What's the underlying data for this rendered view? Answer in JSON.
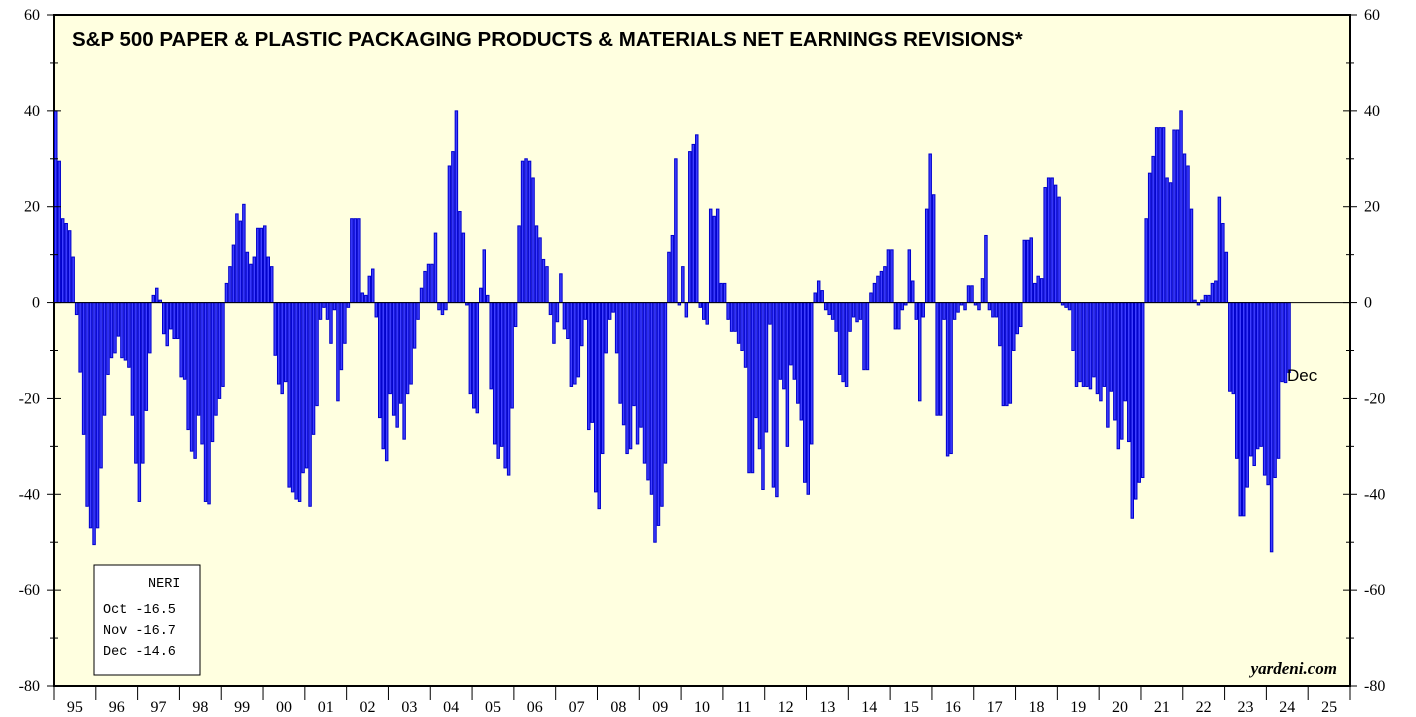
{
  "chart_data": {
    "type": "bar",
    "title": "S&P 500 PAPER & PLASTIC PACKAGING PRODUCTS & MATERIALS NET EARNINGS REVISIONS*",
    "ylim": [
      -80,
      60
    ],
    "y_ticks": [
      60,
      40,
      20,
      0,
      -20,
      -40,
      -60,
      -80
    ],
    "x_tick_labels": [
      "95",
      "96",
      "97",
      "98",
      "99",
      "00",
      "01",
      "02",
      "03",
      "04",
      "05",
      "06",
      "07",
      "08",
      "09",
      "10",
      "11",
      "12",
      "13",
      "14",
      "15",
      "16",
      "17",
      "18",
      "19",
      "20",
      "21",
      "22",
      "23",
      "24",
      "25"
    ],
    "x_start": "1995-01",
    "x_end": "2025-12",
    "end_label": "Dec",
    "credit": "yardeni.com",
    "legend": {
      "title": "NERI",
      "entries": [
        {
          "label": "Oct",
          "value": "-16.5"
        },
        {
          "label": "Nov",
          "value": "-16.7"
        },
        {
          "label": "Dec",
          "value": "-14.6"
        }
      ]
    },
    "series": [
      {
        "values": [
          40,
          29.5,
          17.5,
          16.5,
          15,
          9.5,
          -2.5,
          -14.5,
          -27.5,
          -42.5,
          -47,
          -50.5,
          -47,
          -34.5,
          -23.5,
          -15,
          -11.5,
          -10.5,
          -7,
          -11.5,
          -12,
          -13.5,
          -23.5,
          -33.5,
          -41.5,
          -33.5,
          -22.5,
          -10.5,
          1.5,
          3,
          0.5,
          -6.5,
          -9,
          -5.5,
          -7.5,
          -7.5,
          -15.5,
          -16,
          -26.5,
          -31,
          -32.5,
          -23.5,
          -29.5,
          -41.5,
          -42,
          -29,
          -23.5,
          -20,
          -17.5,
          4,
          7.5,
          12,
          18.5,
          17,
          20.5,
          10.5,
          8,
          9.5,
          15.5,
          15.5,
          16,
          9.5,
          7.5,
          -11,
          -17,
          -19,
          -16.5,
          -38.5,
          -39.5,
          -41,
          -41.5,
          -35.5,
          -34.5,
          -42.5,
          -27.5,
          -21.5,
          -3.5,
          -1,
          -3.5,
          -8.5,
          -1.5,
          -20.5,
          -14,
          -8.5,
          -1,
          17.5,
          17.5,
          17.5,
          2,
          1.5,
          5.5,
          7,
          -3,
          -24,
          -30.5,
          -33,
          -19,
          -23.5,
          -26,
          -21,
          -28.5,
          -19,
          -17,
          -9.5,
          -3.5,
          3,
          6.5,
          8,
          8,
          14.5,
          -1.5,
          -2.5,
          -1.5,
          28.5,
          31.5,
          40,
          19,
          14.5,
          -0.5,
          -19,
          -22,
          -23,
          3,
          11,
          1.5,
          -18,
          -29.5,
          -32.5,
          -30,
          -34.5,
          -36,
          -22,
          -5,
          16,
          29.5,
          30,
          29.5,
          26,
          16,
          13.5,
          9,
          7.5,
          -2.5,
          -8.5,
          -4,
          6,
          -5.5,
          -7.5,
          -17.5,
          -17,
          -15.5,
          -9,
          -3.5,
          -26.5,
          -25,
          -39.5,
          -43,
          -31.5,
          -10.5,
          -3.5,
          -2,
          -10.5,
          -21,
          -25.5,
          -31.5,
          -30.5,
          -21.5,
          -29.5,
          -26,
          -33.5,
          -37,
          -40,
          -50,
          -46.5,
          -42.5,
          -33.5,
          10.5,
          14,
          30,
          -0.5,
          7.5,
          -3,
          31.5,
          33,
          35,
          -1,
          -3.5,
          -4.5,
          19.5,
          18,
          19.5,
          4,
          4,
          -3.5,
          -6,
          -6,
          -8.5,
          -10,
          -13.5,
          -35.5,
          -35.5,
          -24,
          -30.5,
          -39,
          -27,
          -4.5,
          -38.5,
          -40.5,
          -16,
          -18,
          -30,
          -13,
          -16,
          -21,
          -24.5,
          -37.5,
          -40,
          -29.5,
          2,
          4.5,
          2.5,
          -1.5,
          -2.5,
          -3.5,
          -6,
          -15,
          -16.5,
          -17.5,
          -6,
          -3,
          -4,
          -3.5,
          -14,
          -14,
          2,
          4,
          5.5,
          6.5,
          7.5,
          11,
          11,
          -5.5,
          -5.5,
          -1.5,
          -0.5,
          11,
          4.5,
          -3.5,
          -20.5,
          -3,
          19.5,
          31,
          22.5,
          -23.5,
          -23.5,
          -3.5,
          -32,
          -31.5,
          -3.5,
          -2,
          -0.5,
          -1.5,
          3.5,
          3.5,
          -0.5,
          -1.5,
          5,
          14,
          -1.5,
          -3,
          -3,
          -9,
          -21.5,
          -21.5,
          -21,
          -10,
          -6.5,
          -5,
          13,
          13,
          13.5,
          4,
          5.5,
          5,
          24,
          26,
          26,
          24.5,
          22,
          -0.5,
          -1,
          -1.5,
          -10,
          -17.5,
          -16.5,
          -17.5,
          -17.5,
          -18,
          -15.5,
          -19,
          -20.5,
          -17.5,
          -26,
          -18.5,
          -24.5,
          -30.5,
          -28.5,
          -20.5,
          -29,
          -45,
          -41,
          -37.5,
          -36.5,
          17.5,
          27,
          30.5,
          36.5,
          36.5,
          36.5,
          26,
          25,
          36,
          36,
          40,
          31,
          28.5,
          19.5,
          0.5,
          -0.5,
          0.5,
          1.5,
          1.5,
          4,
          4.5,
          22,
          16.5,
          10.5,
          -18.5,
          -19,
          -32.5,
          -44.5,
          -44.5,
          -38.5,
          -32,
          -34,
          -30.5,
          -30,
          -36,
          -38,
          -52,
          -36.5,
          -32.5,
          -16.5,
          -16.7,
          -14.6
        ]
      }
    ]
  }
}
